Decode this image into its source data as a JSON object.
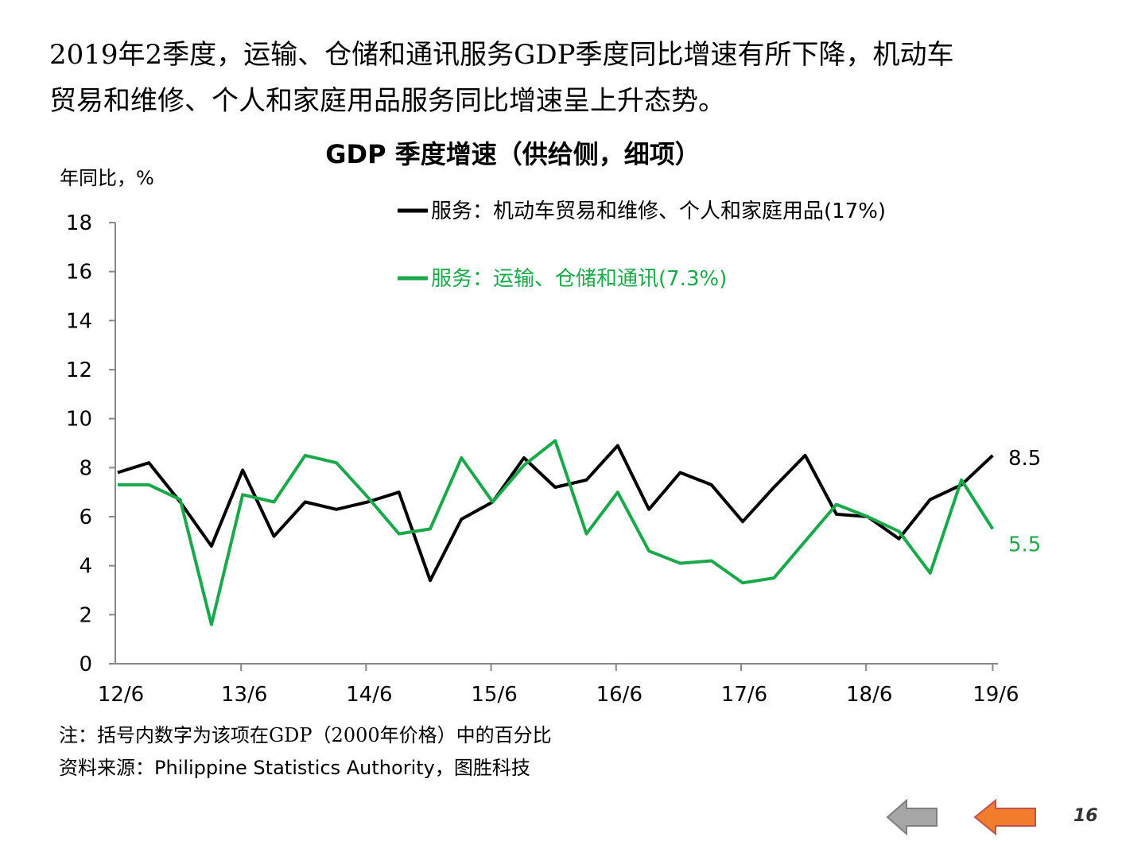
{
  "headline": {
    "line1": "2019年2季度，运输、仓储和通讯服务GDP季度同比增速有所下降，机动车",
    "line2": "贸易和维修、个人和家庭用品服务同比增速呈上升态势。"
  },
  "colors": {
    "series_black": "#000000",
    "series_green": "#1aa84a",
    "nav_back": "#a6a6a6",
    "nav_forward": "#f07c2c"
  },
  "chart_data": {
    "type": "line",
    "title": "GDP 季度增速（供给侧，细项）",
    "ylabel": "年同比，%",
    "xlabel": "",
    "ylim": [
      0,
      18
    ],
    "yticks": [
      0,
      2,
      4,
      6,
      8,
      10,
      12,
      14,
      16,
      18
    ],
    "x_tick_labels": [
      "12/6",
      "13/6",
      "14/6",
      "15/6",
      "16/6",
      "17/6",
      "18/6",
      "19/6"
    ],
    "quarters": 29,
    "series": [
      {
        "name": "服务：机动车贸易和维修、个人和家庭用品(17%)",
        "color": "#000000",
        "values": [
          7.8,
          8.2,
          6.6,
          4.8,
          7.9,
          5.2,
          6.6,
          6.3,
          6.6,
          7.0,
          3.4,
          5.9,
          6.6,
          8.4,
          7.2,
          7.5,
          8.9,
          6.3,
          7.8,
          7.3,
          5.8,
          7.2,
          8.5,
          6.1,
          6.0,
          5.1,
          6.7,
          7.3,
          8.5
        ],
        "end_label": "8.5"
      },
      {
        "name": "服务：运输、仓储和通讯(7.3%)",
        "color": "#1aa84a",
        "values": [
          7.3,
          7.3,
          6.7,
          1.6,
          6.9,
          6.6,
          8.5,
          8.2,
          6.8,
          5.3,
          5.5,
          8.4,
          6.6,
          8.1,
          9.1,
          5.3,
          7.0,
          4.6,
          4.1,
          4.2,
          3.3,
          3.5,
          5.0,
          6.5,
          6.0,
          5.4,
          3.7,
          7.5,
          5.5
        ],
        "end_label": "5.5"
      }
    ],
    "legend_position": "top-right",
    "grid": false
  },
  "notes": {
    "note": "注：括号内数字为该项在GDP（2000年价格）中的百分比",
    "source": "资料来源：Philippine Statistics Authority，图胜科技"
  },
  "nav": {
    "back_icon": "arrow-left-icon",
    "forward_icon": "arrow-left-icon"
  },
  "page": {
    "number": "16"
  }
}
